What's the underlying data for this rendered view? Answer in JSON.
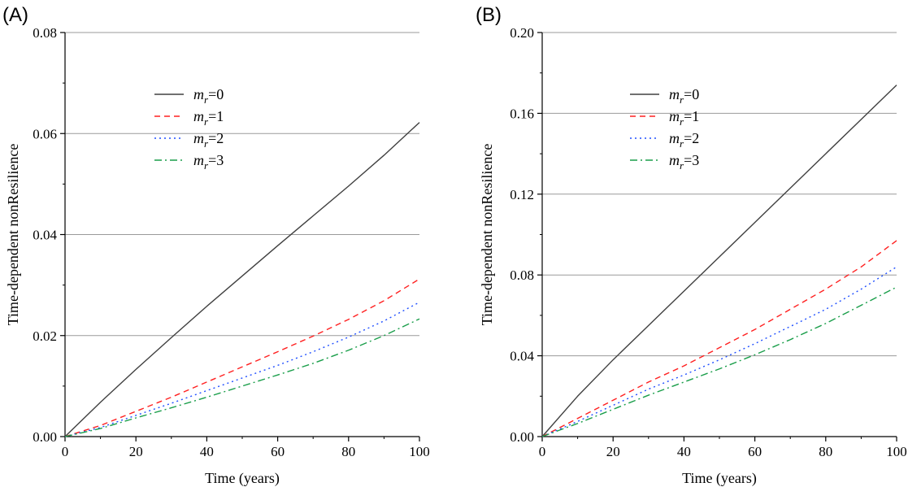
{
  "chart_data": [
    {
      "type": "line",
      "panel_label": "(A)",
      "xlabel": "Time (years)",
      "ylabel": "Time-dependent nonResilience",
      "xlim": [
        0,
        100
      ],
      "ylim": [
        0,
        0.08
      ],
      "xticks": [
        "0",
        "20",
        "40",
        "60",
        "80",
        "100"
      ],
      "yticks": [
        "0.00",
        "0.02",
        "0.04",
        "0.06",
        "0.08"
      ],
      "grid": "horizontal",
      "legend_position": "upper-left",
      "x": [
        0,
        10,
        20,
        30,
        40,
        50,
        60,
        70,
        80,
        90,
        100
      ],
      "series": [
        {
          "name": "=0",
          "name_var": "m",
          "name_sub": "r",
          "color": "#404040",
          "dash": "solid",
          "values": [
            0,
            0.0068,
            0.0133,
            0.0196,
            0.0258,
            0.0318,
            0.0378,
            0.0437,
            0.0496,
            0.0557,
            0.0622
          ]
        },
        {
          "name": "=1",
          "name_var": "m",
          "name_sub": "r",
          "color": "#ff2020",
          "dash": "dash",
          "values": [
            0,
            0.0022,
            0.005,
            0.0078,
            0.0108,
            0.0138,
            0.0168,
            0.0199,
            0.0232,
            0.0269,
            0.0312
          ]
        },
        {
          "name": "=2",
          "name_var": "m",
          "name_sub": "r",
          "color": "#1f4fff",
          "dash": "dot",
          "values": [
            0,
            0.0018,
            0.0042,
            0.0066,
            0.0091,
            0.0116,
            0.0141,
            0.0168,
            0.0197,
            0.0229,
            0.0266
          ]
        },
        {
          "name": "=3",
          "name_var": "m",
          "name_sub": "r",
          "color": "#1a9e4a",
          "dash": "dashdot",
          "values": [
            0,
            0.0016,
            0.0037,
            0.0057,
            0.0078,
            0.01,
            0.0122,
            0.0145,
            0.0171,
            0.02,
            0.0233
          ]
        }
      ]
    },
    {
      "type": "line",
      "panel_label": "(B)",
      "xlabel": "Time (years)",
      "ylabel": "Time-dependent nonResilience",
      "xlim": [
        0,
        100
      ],
      "ylim": [
        0,
        0.2
      ],
      "xticks": [
        "0",
        "20",
        "40",
        "60",
        "80",
        "100"
      ],
      "yticks": [
        "0.00",
        "0.04",
        "0.08",
        "0.12",
        "0.16",
        "0.20"
      ],
      "grid": "horizontal",
      "legend_position": "upper-left",
      "x": [
        0,
        10,
        20,
        30,
        40,
        50,
        60,
        70,
        80,
        90,
        100
      ],
      "series": [
        {
          "name": "=0",
          "name_var": "m",
          "name_sub": "r",
          "color": "#404040",
          "dash": "solid",
          "values": [
            0,
            0.02,
            0.038,
            0.055,
            0.072,
            0.089,
            0.106,
            0.123,
            0.14,
            0.157,
            0.174
          ]
        },
        {
          "name": "=1",
          "name_var": "m",
          "name_sub": "r",
          "color": "#ff2020",
          "dash": "dash",
          "values": [
            0,
            0.009,
            0.018,
            0.027,
            0.035,
            0.044,
            0.053,
            0.063,
            0.073,
            0.084,
            0.097
          ]
        },
        {
          "name": "=2",
          "name_var": "m",
          "name_sub": "r",
          "color": "#1f4fff",
          "dash": "dot",
          "values": [
            0,
            0.0075,
            0.0155,
            0.0235,
            0.0305,
            0.038,
            0.046,
            0.0545,
            0.063,
            0.073,
            0.084
          ]
        },
        {
          "name": "=3",
          "name_var": "m",
          "name_sub": "r",
          "color": "#1a9e4a",
          "dash": "dashdot",
          "values": [
            0,
            0.0065,
            0.0135,
            0.0205,
            0.027,
            0.0335,
            0.0405,
            0.048,
            0.056,
            0.065,
            0.074
          ]
        }
      ]
    }
  ]
}
